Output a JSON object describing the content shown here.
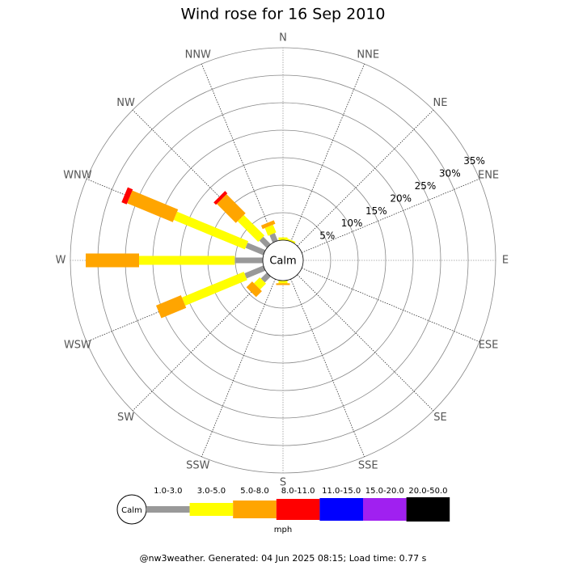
{
  "chart_data": {
    "type": "windrose",
    "title": "Wind rose for 16 Sep 2010",
    "categories": [
      "N",
      "NNE",
      "NE",
      "ENE",
      "E",
      "ESE",
      "SE",
      "SSE",
      "S",
      "SSW",
      "SW",
      "WSW",
      "W",
      "WNW",
      "NW",
      "NNW"
    ],
    "calm_label": "Calm",
    "rlim": [
      0,
      35
    ],
    "rticks": [
      {
        "value": 5,
        "label": "5%"
      },
      {
        "value": 10,
        "label": "10%"
      },
      {
        "value": 15,
        "label": "15%"
      },
      {
        "value": 20,
        "label": "20%"
      },
      {
        "value": 25,
        "label": "25%"
      },
      {
        "value": 30,
        "label": "30%"
      },
      {
        "value": 35,
        "label": "35%"
      }
    ],
    "series": [
      {
        "name": "1.0-3.0",
        "color": "#999999",
        "values": [
          0,
          0,
          0,
          0,
          0,
          0,
          0,
          0,
          0,
          0,
          1.5,
          3.7,
          5.1,
          3.5,
          1.9,
          1.5
        ]
      },
      {
        "name": "3.0-5.0",
        "color": "#ffff00",
        "values": [
          0.5,
          0.3,
          0,
          0,
          0,
          0,
          0,
          0,
          0.5,
          0,
          1.5,
          12.2,
          17.4,
          14,
          5.3,
          1.5
        ]
      },
      {
        "name": "5.0-8.0",
        "color": "#ffa500",
        "values": [
          0,
          0,
          0,
          0,
          0,
          0,
          0,
          0,
          0.3,
          0,
          1.5,
          4.9,
          9.7,
          9,
          4.9,
          0.7
        ]
      },
      {
        "name": "8.0-11.0",
        "color": "#ff0000",
        "values": [
          0,
          0,
          0,
          0,
          0,
          0,
          0,
          0,
          0,
          0,
          0,
          0,
          0,
          1,
          0.6,
          0
        ]
      },
      {
        "name": "11.0-15.0",
        "color": "#0000ff",
        "values": [
          0,
          0,
          0,
          0,
          0,
          0,
          0,
          0,
          0,
          0,
          0,
          0,
          0,
          0,
          0,
          0
        ]
      },
      {
        "name": "15.0-20.0",
        "color": "#a020f0",
        "values": [
          0,
          0,
          0,
          0,
          0,
          0,
          0,
          0,
          0,
          0,
          0,
          0,
          0,
          0,
          0,
          0
        ]
      },
      {
        "name": "20.0-50.0",
        "color": "#000000",
        "values": [
          0,
          0,
          0,
          0,
          0,
          0,
          0,
          0,
          0,
          0,
          0,
          0,
          0,
          0,
          0,
          0
        ]
      }
    ],
    "legend_unit": "mph",
    "footer": "@nw3weather. Generated: 04 Jun 2025 08:15; Load time: 0.77 s"
  }
}
